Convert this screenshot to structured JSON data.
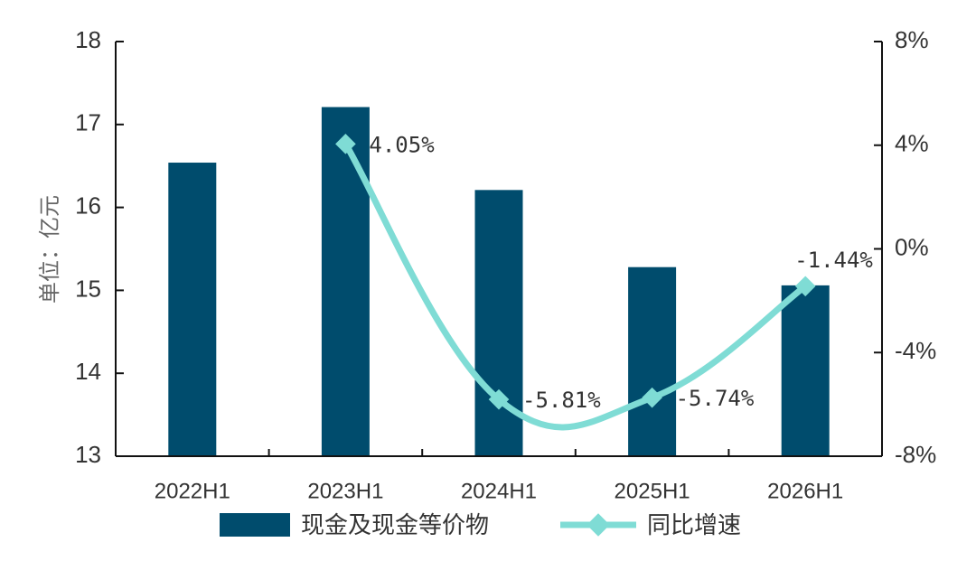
{
  "chart_data": {
    "type": "bar",
    "categories": [
      "2022H1",
      "2023H1",
      "2024H1",
      "2025H1",
      "2026H1"
    ],
    "series": [
      {
        "name": "现金及现金等价物",
        "type": "bar",
        "axis": "left",
        "color": "#004C6D",
        "values": [
          16.54,
          17.21,
          16.21,
          15.28,
          15.06
        ]
      },
      {
        "name": "同比增速",
        "type": "line",
        "axis": "right",
        "color": "#7FDCD5",
        "values": [
          null,
          4.05,
          -5.81,
          -5.74,
          -1.44
        ],
        "labels": [
          "",
          "4.05%",
          "-5.81%",
          "-5.74%",
          "-1.44%"
        ]
      }
    ],
    "ylabel": "单位：亿元",
    "ylim": [
      13,
      18
    ],
    "yticks": [
      "13",
      "14",
      "15",
      "16",
      "17",
      "18"
    ],
    "y2lim": [
      -8,
      8
    ],
    "y2ticks": [
      "-8%",
      "-4%",
      "0%",
      "4%",
      "8%"
    ],
    "legend_position": "bottom",
    "grid": false
  }
}
